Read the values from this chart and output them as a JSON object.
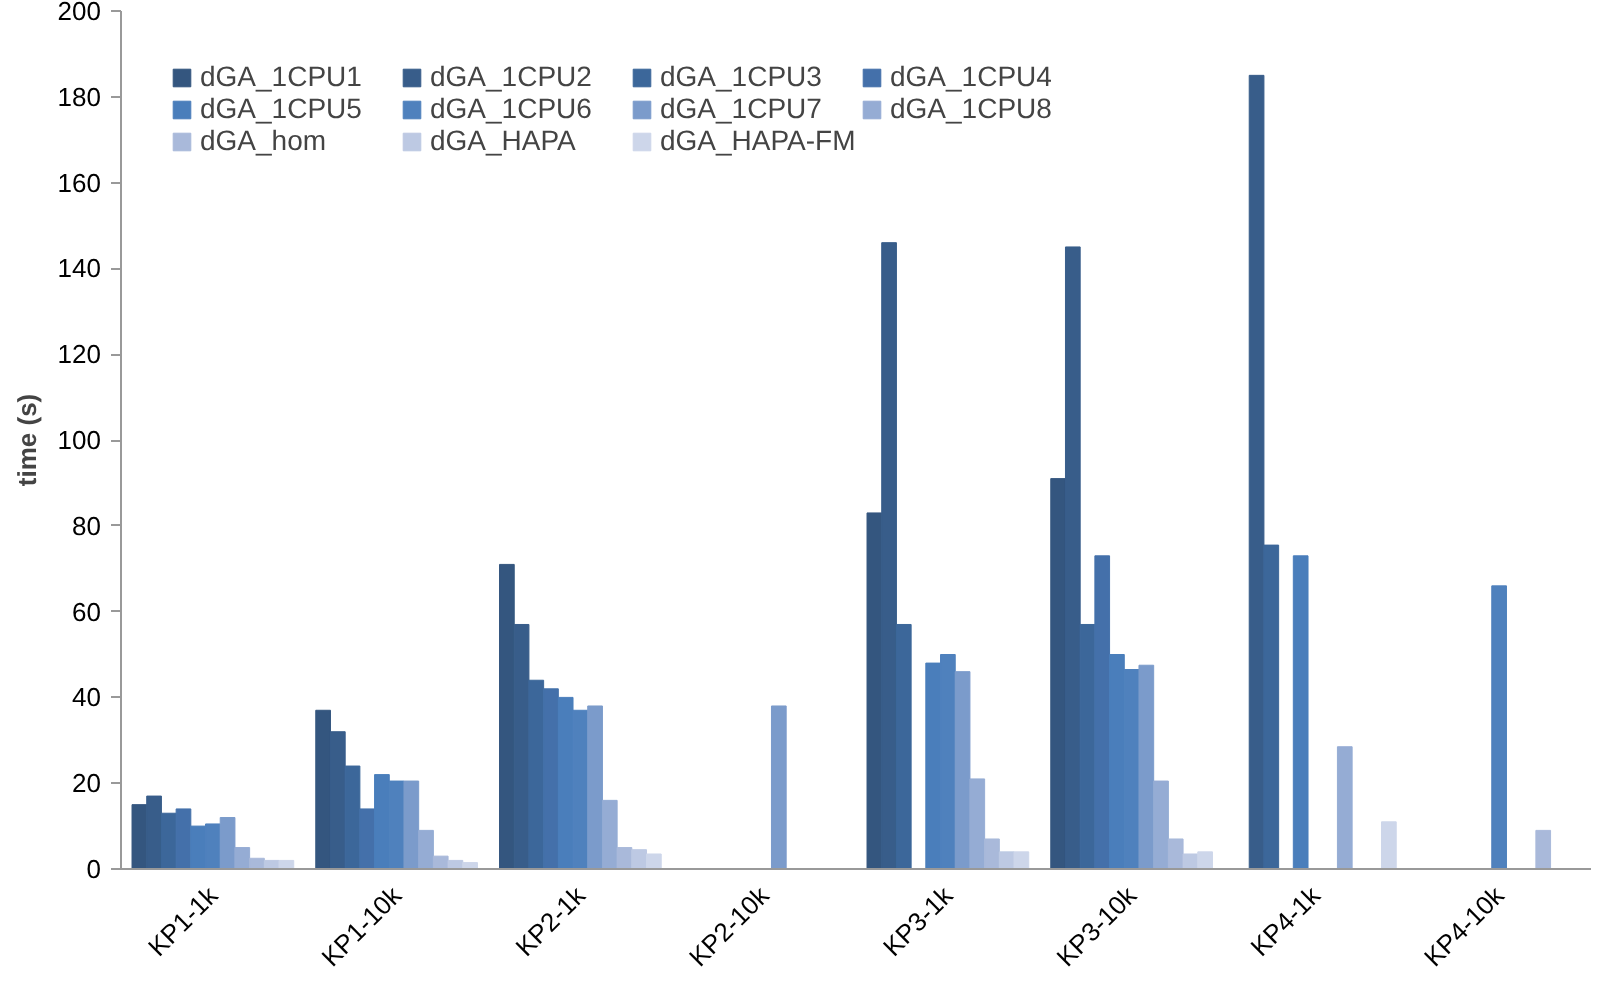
{
  "chart_data": {
    "type": "bar",
    "ylabel": "time (s)",
    "categories": [
      "KP1-1k",
      "KP1-10k",
      "KP2-1k",
      "KP2-10k",
      "KP3-1k",
      "KP3-10k",
      "KP4-1k",
      "KP4-10k"
    ],
    "series": [
      {
        "name": "dGA_1CPU1",
        "color": "#34567f",
        "values": [
          15,
          37,
          71,
          null,
          83,
          91,
          null,
          null
        ]
      },
      {
        "name": "dGA_1CPU2",
        "color": "#385d8a",
        "values": [
          17,
          32,
          57,
          null,
          146,
          145,
          185,
          null
        ]
      },
      {
        "name": "dGA_1CPU3",
        "color": "#3c679a",
        "values": [
          13,
          24,
          44,
          null,
          57,
          57,
          75.5,
          null
        ]
      },
      {
        "name": "dGA_1CPU4",
        "color": "#4470aa",
        "values": [
          14,
          14,
          42,
          null,
          null,
          73,
          null,
          null
        ]
      },
      {
        "name": "dGA_1CPU5",
        "color": "#4a7ebb",
        "values": [
          10,
          22,
          40,
          null,
          48,
          50,
          73,
          null
        ]
      },
      {
        "name": "dGA_1CPU6",
        "color": "#4f81bd",
        "values": [
          10.5,
          20.5,
          37,
          null,
          50,
          46.5,
          null,
          66
        ]
      },
      {
        "name": "dGA_1CPU7",
        "color": "#7b9bcb",
        "values": [
          12,
          20.5,
          38,
          38,
          46,
          47.5,
          null,
          null
        ]
      },
      {
        "name": "dGA_1CPU8",
        "color": "#95acd4",
        "values": [
          5,
          9,
          16,
          null,
          21,
          20.5,
          28.5,
          null
        ]
      },
      {
        "name": "dGA_hom",
        "color": "#a9b9da",
        "values": [
          2.5,
          3,
          5,
          null,
          7,
          7,
          null,
          9
        ]
      },
      {
        "name": "dGA_HAPA",
        "color": "#bdc9e3",
        "values": [
          2,
          2,
          4.5,
          null,
          4,
          3.5,
          null,
          null
        ]
      },
      {
        "name": "dGA_HAPA-FM",
        "color": "#cdd6ea",
        "values": [
          2,
          1.5,
          3.5,
          null,
          4,
          4,
          11,
          null
        ]
      }
    ],
    "ylim": [
      0,
      200
    ],
    "yticks": [
      0,
      20,
      40,
      60,
      80,
      100,
      120,
      140,
      160,
      180,
      200
    ],
    "grid": false,
    "legend": "top"
  }
}
